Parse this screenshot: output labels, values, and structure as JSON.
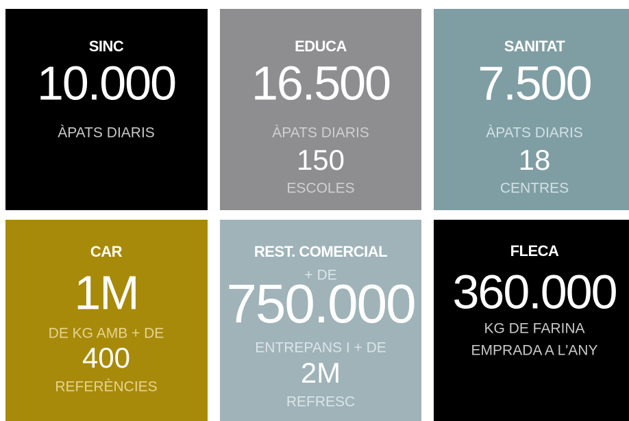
{
  "tiles": [
    {
      "title": "SINC",
      "lines": [
        "10.000",
        "ÀPATS DIARIS"
      ]
    },
    {
      "title": "EDUCA",
      "lines": [
        "16.500",
        "ÀPATS DIARIS",
        "150",
        "ESCOLES"
      ]
    },
    {
      "title": "SANITAT",
      "lines": [
        "7.500",
        "ÀPATS DIARIS",
        "18",
        "CENTRES"
      ]
    },
    {
      "title": "CAR",
      "lines": [
        "1M",
        "DE KG AMB + DE",
        "400",
        "REFERÈNCIES"
      ]
    },
    {
      "title": "REST. COMERCIAL",
      "lines": [
        "+ DE",
        "750.000",
        "ENTREPANS I + DE",
        "2M",
        "REFRESC"
      ]
    },
    {
      "title": "FLECA",
      "lines": [
        "360.000",
        "KG DE FARINA",
        "EMPRADA A L'ANY"
      ]
    }
  ]
}
